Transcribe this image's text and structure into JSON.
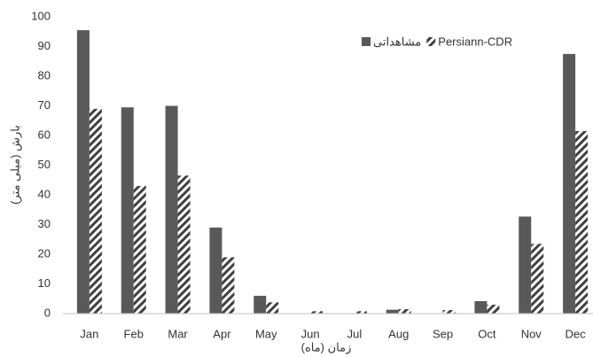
{
  "chart_data": {
    "type": "bar",
    "x_label": "زمان (ماه)",
    "y_label": "بارش (میلی متر)",
    "categories": [
      "Jan",
      "Feb",
      "Mar",
      "Apr",
      "May",
      "Jun",
      "Jul",
      "Aug",
      "Sep",
      "Oct",
      "Nov",
      "Dec"
    ],
    "series": [
      {
        "name": "مشاهداتی",
        "color": "#595959",
        "style": "solid",
        "values": [
          95.5,
          69.5,
          70,
          29,
          6,
          0,
          0,
          1.3,
          0,
          4.2,
          32.7,
          87.5
        ]
      },
      {
        "name": "Persiann-CDR",
        "color": "#404040",
        "style": "hatch",
        "values": [
          69,
          43,
          46.5,
          19,
          3.8,
          0.8,
          0.8,
          1.5,
          1.2,
          3,
          23.5,
          61.5
        ]
      }
    ],
    "ylim": [
      0,
      100
    ],
    "yticks": [
      0,
      10,
      20,
      30,
      40,
      50,
      60,
      70,
      80,
      90,
      100
    ],
    "grid": false,
    "legend": "top-right"
  }
}
